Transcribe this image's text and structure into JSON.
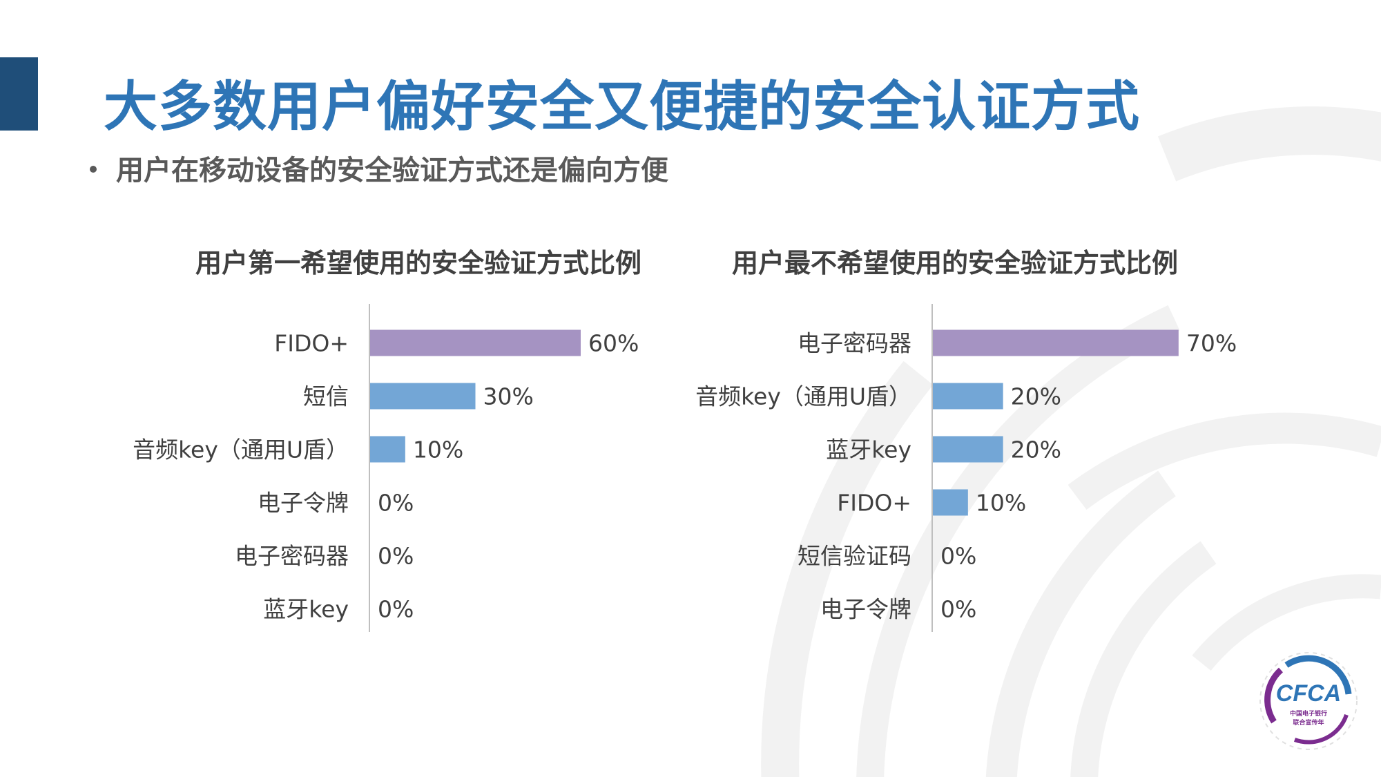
{
  "slide": {
    "title": "大多数用户偏好安全又便捷的安全认证方式",
    "bullet": "用户在移动设备的安全验证方式还是偏向方便"
  },
  "logo": {
    "brand": "CFCA",
    "subtitle_1": "中国电子银行",
    "subtitle_2": "联合宣传年"
  },
  "colors": {
    "accent_bar": "#1f4e79",
    "title": "#2e75b6",
    "bar_top": "#a593c2",
    "bar_other": "#73a6d6",
    "axis": "#bfbfbf",
    "bg_arcs": "#f2f2f2"
  },
  "chart_data": [
    {
      "type": "bar",
      "orientation": "horizontal",
      "title": "用户第一希望使用的安全验证方式比例",
      "categories": [
        "FIDO+",
        "短信",
        "音频key（通用U盾）",
        "电子令牌",
        "电子密码器",
        "蓝牙key"
      ],
      "values": [
        60,
        30,
        10,
        0,
        0,
        0
      ],
      "value_labels": [
        "60%",
        "30%",
        "10%",
        "0%",
        "0%",
        "0%"
      ],
      "unit": "%",
      "xlim": [
        0,
        100
      ],
      "grid": false,
      "legend": "none"
    },
    {
      "type": "bar",
      "orientation": "horizontal",
      "title": "用户最不希望使用的安全验证方式比例",
      "categories": [
        "电子密码器",
        "音频key（通用U盾）",
        "蓝牙key",
        "FIDO+",
        "短信验证码",
        "电子令牌"
      ],
      "values": [
        70,
        20,
        20,
        10,
        0,
        0
      ],
      "value_labels": [
        "70%",
        "20%",
        "20%",
        "10%",
        "0%",
        "0%"
      ],
      "unit": "%",
      "xlim": [
        0,
        100
      ],
      "grid": false,
      "legend": "none"
    }
  ]
}
